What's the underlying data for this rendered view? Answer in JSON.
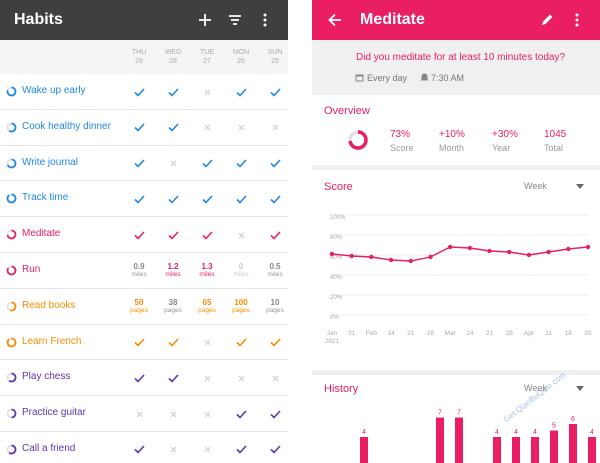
{
  "left": {
    "title": "Habits",
    "days": [
      {
        "name": "THU",
        "num": "29"
      },
      {
        "name": "WED",
        "num": "28"
      },
      {
        "name": "TUE",
        "num": "27"
      },
      {
        "name": "MON",
        "num": "26"
      },
      {
        "name": "SUN",
        "num": "25"
      }
    ],
    "habits": [
      {
        "name": "Wake up early",
        "color": "#1e88e5",
        "progress": 0.8,
        "cells": [
          {
            "t": "check"
          },
          {
            "t": "check"
          },
          {
            "t": "x"
          },
          {
            "t": "check"
          },
          {
            "t": "check"
          }
        ]
      },
      {
        "name": "Cook healthy dinner",
        "color": "#1e88e5",
        "progress": 0.6,
        "cells": [
          {
            "t": "check"
          },
          {
            "t": "check"
          },
          {
            "t": "x"
          },
          {
            "t": "x"
          },
          {
            "t": "x"
          }
        ]
      },
      {
        "name": "Write journal",
        "color": "#1e88e5",
        "progress": 0.7,
        "cells": [
          {
            "t": "check"
          },
          {
            "t": "x"
          },
          {
            "t": "check"
          },
          {
            "t": "check"
          },
          {
            "t": "check"
          }
        ]
      },
      {
        "name": "Track time",
        "color": "#1e88e5",
        "progress": 0.9,
        "cells": [
          {
            "t": "check"
          },
          {
            "t": "check"
          },
          {
            "t": "check"
          },
          {
            "t": "check"
          },
          {
            "t": "check"
          }
        ]
      },
      {
        "name": "Meditate",
        "color": "#e91e63",
        "progress": 0.73,
        "cells": [
          {
            "t": "check"
          },
          {
            "t": "check"
          },
          {
            "t": "check"
          },
          {
            "t": "x"
          },
          {
            "t": "check"
          }
        ]
      },
      {
        "name": "Run",
        "color": "#e91e63",
        "progress": 0.85,
        "cells": [
          {
            "t": "num",
            "v": "0.9",
            "u": "miles",
            "on": false
          },
          {
            "t": "num",
            "v": "1.2",
            "u": "miles",
            "on": true
          },
          {
            "t": "num",
            "v": "1.3",
            "u": "miles",
            "on": true
          },
          {
            "t": "num",
            "v": "0",
            "u": "miles",
            "on": false,
            "faint": true
          },
          {
            "t": "num",
            "v": "0.5",
            "u": "miles",
            "on": false
          }
        ]
      },
      {
        "name": "Read books",
        "color": "#fb8c00",
        "progress": 0.55,
        "cells": [
          {
            "t": "num",
            "v": "50",
            "u": "pages",
            "on": true
          },
          {
            "t": "num",
            "v": "38",
            "u": "pages",
            "on": false
          },
          {
            "t": "num",
            "v": "65",
            "u": "pages",
            "on": true
          },
          {
            "t": "num",
            "v": "100",
            "u": "pages",
            "on": true
          },
          {
            "t": "num",
            "v": "10",
            "u": "pages",
            "on": false
          }
        ]
      },
      {
        "name": "Learn French",
        "color": "#fb8c00",
        "progress": 0.9,
        "cells": [
          {
            "t": "check"
          },
          {
            "t": "check"
          },
          {
            "t": "x"
          },
          {
            "t": "check"
          },
          {
            "t": "check"
          }
        ]
      },
      {
        "name": "Play chess",
        "color": "#5e35b1",
        "progress": 0.6,
        "cells": [
          {
            "t": "check"
          },
          {
            "t": "check"
          },
          {
            "t": "x"
          },
          {
            "t": "x"
          },
          {
            "t": "x"
          }
        ]
      },
      {
        "name": "Practice guitar",
        "color": "#5e35b1",
        "progress": 0.5,
        "cells": [
          {
            "t": "x"
          },
          {
            "t": "x"
          },
          {
            "t": "x"
          },
          {
            "t": "check"
          },
          {
            "t": "check"
          }
        ]
      },
      {
        "name": "Call a friend",
        "color": "#5e35b1",
        "progress": 0.6,
        "cells": [
          {
            "t": "check"
          },
          {
            "t": "x"
          },
          {
            "t": "x"
          },
          {
            "t": "check"
          },
          {
            "t": "check"
          }
        ]
      }
    ]
  },
  "right": {
    "title": "Meditate",
    "question": "Did you meditate for at least 10 minutes today?",
    "frequency": "Every day",
    "reminder": "7:30 AM",
    "overview": {
      "title": "Overview",
      "ring_progress": 0.73,
      "stats": [
        {
          "value": "73%",
          "label": "Score"
        },
        {
          "value": "+10%",
          "label": "Month"
        },
        {
          "value": "+30%",
          "label": "Year"
        },
        {
          "value": "1045",
          "label": "Total"
        }
      ]
    },
    "score": {
      "title": "Score",
      "period": "Week"
    },
    "history": {
      "title": "History",
      "period": "Week"
    },
    "watermark": "Get.QiaoBuQiao.com"
  },
  "chart_data": [
    {
      "type": "line",
      "title": "Score",
      "x": [
        "Jan 2021",
        "31",
        "Feb",
        "14",
        "21",
        "28",
        "Mar",
        "14",
        "21",
        "28",
        "Apr",
        "11",
        "18",
        "25"
      ],
      "y_ticks": [
        "100%",
        "80%",
        "60%",
        "40%",
        "20%",
        "0%"
      ],
      "ylim": [
        0,
        100
      ],
      "series": [
        {
          "values": [
            61,
            59,
            58,
            55,
            54,
            58,
            68,
            67,
            64,
            63,
            60,
            63,
            66,
            68
          ]
        }
      ]
    },
    {
      "type": "bar",
      "title": "History",
      "series": [
        {
          "values": [
            4,
            0,
            0,
            0,
            7,
            7,
            0,
            4,
            4,
            4,
            5,
            6,
            4
          ]
        }
      ]
    }
  ]
}
